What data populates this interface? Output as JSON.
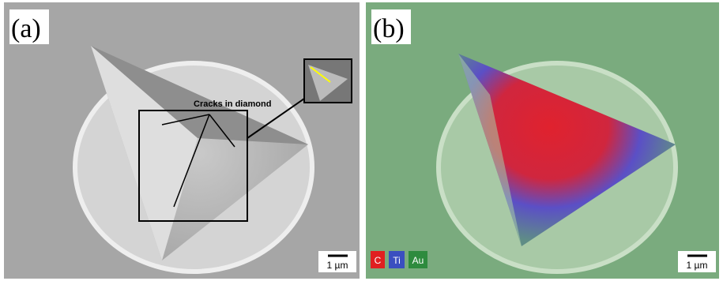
{
  "panels": [
    {
      "label": "(a)",
      "annotation": "Cracks in diamond",
      "scale_bar": "1 µm"
    },
    {
      "label": "(b)",
      "scale_bar": "1 µm",
      "legend": [
        "C",
        "Ti",
        "Au"
      ]
    }
  ]
}
